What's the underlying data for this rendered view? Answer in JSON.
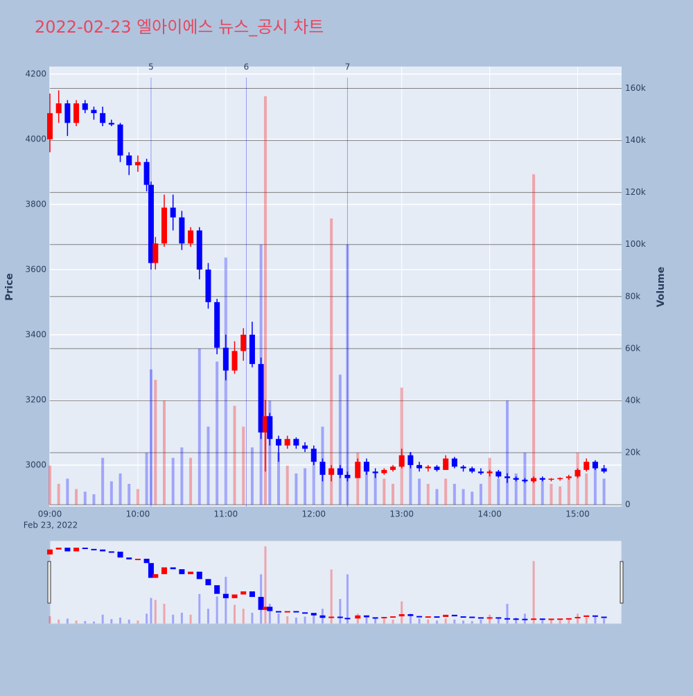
{
  "chart_data": {
    "type": "candlestick",
    "title": "2022-02-23 엘아이에스 뉴스_공시 차트",
    "yaxis_title": "Price",
    "y2axis_title": "Volume",
    "x_date_label": "Feb 23, 2022",
    "xlim": [
      "09:00",
      "15:30"
    ],
    "xticks": [
      "09:00",
      "10:00",
      "11:00",
      "12:00",
      "13:00",
      "14:00",
      "15:00"
    ],
    "ylim": [
      2872,
      4223
    ],
    "yticks": [
      3000,
      3200,
      3400,
      3600,
      3800,
      4000,
      4200
    ],
    "y2lim": [
      -800,
      168400
    ],
    "y2ticks": [
      0,
      {
        "value": 20000,
        "label": "20k"
      },
      {
        "value": 40000,
        "label": "40k"
      },
      {
        "value": 60000,
        "label": "60k"
      },
      {
        "value": 80000,
        "label": "80k"
      },
      {
        "value": 100000,
        "label": "100k"
      },
      {
        "value": 120000,
        "label": "120k"
      },
      {
        "value": 140000,
        "label": "140k"
      },
      {
        "value": 160000,
        "label": "160k"
      }
    ],
    "up_color": "#ff0000",
    "down_color": "#0000ff",
    "grid": true,
    "rangeslider": true,
    "annotations": [
      {
        "x": "10:09",
        "label": "5"
      },
      {
        "x": "11:14",
        "label": "6"
      },
      {
        "x": "12:23",
        "label": "7"
      }
    ],
    "x": [
      "09:00",
      "09:06",
      "09:12",
      "09:18",
      "09:24",
      "09:30",
      "09:36",
      "09:42",
      "09:48",
      "09:54",
      "10:00",
      "10:06",
      "10:09",
      "10:12",
      "10:18",
      "10:24",
      "10:30",
      "10:36",
      "10:42",
      "10:48",
      "10:54",
      "11:00",
      "11:06",
      "11:12",
      "11:18",
      "11:24",
      "11:27",
      "11:30",
      "11:36",
      "11:42",
      "11:48",
      "11:54",
      "12:00",
      "12:06",
      "12:12",
      "12:18",
      "12:23",
      "12:30",
      "12:36",
      "12:42",
      "12:48",
      "12:54",
      "13:00",
      "13:06",
      "13:12",
      "13:18",
      "13:24",
      "13:30",
      "13:36",
      "13:42",
      "13:48",
      "13:54",
      "14:00",
      "14:06",
      "14:12",
      "14:18",
      "14:24",
      "14:30",
      "14:36",
      "14:42",
      "14:48",
      "14:54",
      "15:00",
      "15:06",
      "15:12",
      "15:18"
    ],
    "open": [
      4000,
      4080,
      4110,
      4050,
      4110,
      4090,
      4080,
      4050,
      4045,
      3950,
      3920,
      3930,
      3860,
      3620,
      3680,
      3790,
      3760,
      3680,
      3720,
      3600,
      3500,
      3360,
      3290,
      3350,
      3400,
      3310,
      3100,
      3150,
      3080,
      3060,
      3080,
      3060,
      3050,
      3010,
      2970,
      2990,
      2970,
      2960,
      3010,
      2980,
      2975,
      2985,
      2995,
      3030,
      3000,
      2990,
      2995,
      2985,
      3020,
      2995,
      2990,
      2980,
      2975,
      2980,
      2965,
      2960,
      2955,
      2950,
      2960,
      2955,
      2958,
      2960,
      2965,
      2985,
      3010,
      2990
    ],
    "high": [
      4140,
      4150,
      4120,
      4120,
      4120,
      4100,
      4100,
      4060,
      4050,
      3960,
      3950,
      3940,
      3870,
      3700,
      3830,
      3830,
      3780,
      3730,
      3730,
      3620,
      3510,
      3400,
      3380,
      3420,
      3440,
      3330,
      3200,
      3160,
      3090,
      3090,
      3085,
      3070,
      3060,
      3020,
      3000,
      3000,
      2980,
      3020,
      3020,
      2990,
      2990,
      3000,
      3050,
      3040,
      3010,
      3000,
      3000,
      3030,
      3025,
      3000,
      2995,
      2990,
      2985,
      2985,
      2975,
      2965,
      2960,
      2965,
      2965,
      2960,
      2962,
      2970,
      2990,
      3020,
      3015,
      3000
    ],
    "low": [
      3960,
      4050,
      4010,
      4040,
      4080,
      4060,
      4040,
      4040,
      3930,
      3890,
      3900,
      3840,
      3600,
      3600,
      3670,
      3720,
      3660,
      3670,
      3570,
      3480,
      3340,
      3260,
      3280,
      3320,
      3300,
      3080,
      2980,
      3060,
      3010,
      3050,
      3050,
      3040,
      3000,
      2950,
      2950,
      2960,
      2950,
      2960,
      2970,
      2960,
      2970,
      2980,
      2990,
      2990,
      2980,
      2980,
      2980,
      2985,
      2990,
      2980,
      2975,
      2970,
      2965,
      2960,
      2945,
      2950,
      2945,
      2945,
      2950,
      2950,
      2952,
      2955,
      2960,
      2980,
      2985,
      2975
    ],
    "close": [
      4080,
      4110,
      4050,
      4110,
      4090,
      4080,
      4050,
      4045,
      3950,
      3920,
      3930,
      3860,
      3620,
      3680,
      3790,
      3760,
      3680,
      3720,
      3600,
      3500,
      3360,
      3290,
      3350,
      3400,
      3310,
      3100,
      3150,
      3080,
      3060,
      3080,
      3060,
      3050,
      3010,
      2970,
      2990,
      2970,
      2960,
      3010,
      2980,
      2975,
      2985,
      2995,
      3030,
      3000,
      2990,
      2995,
      2985,
      3020,
      2995,
      2990,
      2980,
      2975,
      2980,
      2965,
      2960,
      2955,
      2950,
      2960,
      2955,
      2958,
      2960,
      2965,
      2985,
      3010,
      2990,
      2980
    ],
    "volume": [
      15000,
      8000,
      10000,
      6000,
      5000,
      4000,
      18000,
      9000,
      12000,
      8000,
      6000,
      20000,
      52000,
      48000,
      40000,
      18000,
      22000,
      18000,
      60000,
      30000,
      55000,
      95000,
      38000,
      30000,
      22000,
      100000,
      157000,
      40000,
      20000,
      15000,
      12000,
      14000,
      20000,
      30000,
      110000,
      50000,
      100000,
      20000,
      15000,
      12000,
      10000,
      8000,
      45000,
      20000,
      10000,
      8000,
      6000,
      10000,
      8000,
      6000,
      5000,
      8000,
      18000,
      10000,
      40000,
      12000,
      20000,
      127000,
      10000,
      8000,
      7000,
      10000,
      20000,
      12000,
      15000,
      10000
    ]
  }
}
